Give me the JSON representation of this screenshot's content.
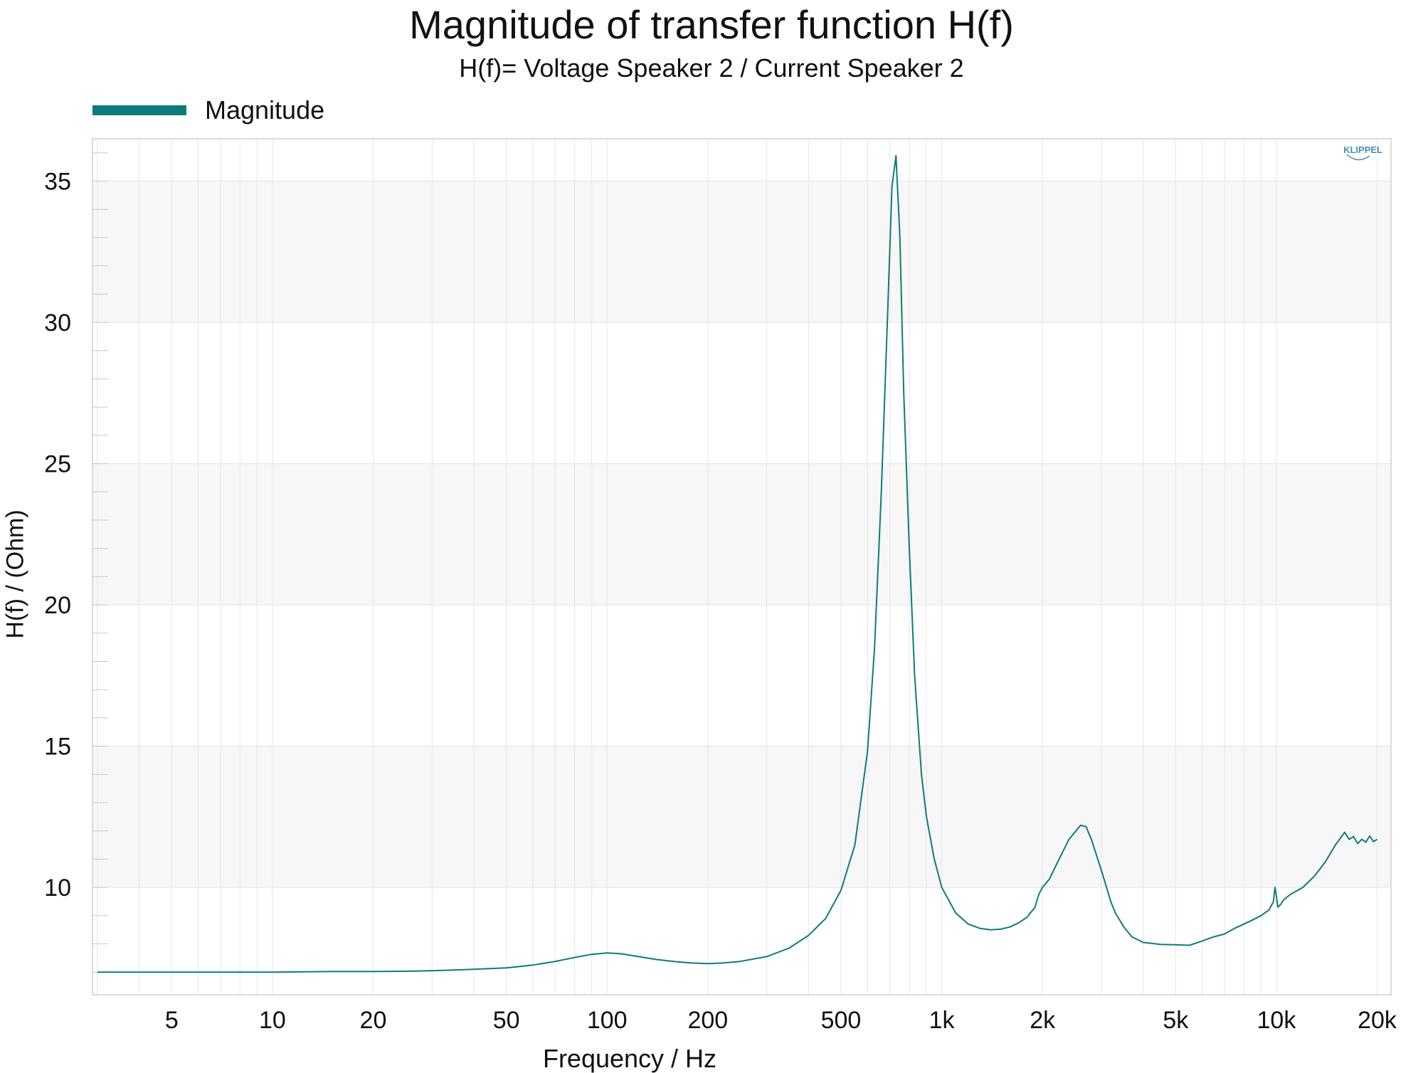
{
  "chart_data": {
    "type": "line",
    "title": "Magnitude of transfer function H(f)",
    "subtitle": "H(f)= Voltage Speaker 2 / Current Speaker 2",
    "xlabel": "Frequency / Hz",
    "ylabel": "H(f) / (Ohm)",
    "x_scale": "log",
    "xlim": [
      2.9,
      22000
    ],
    "ylim": [
      6.2,
      36.5
    ],
    "grid": true,
    "legend_position": "top-left",
    "logo": "KLIPPEL",
    "x_ticks": [
      {
        "value": 5,
        "label": "5"
      },
      {
        "value": 10,
        "label": "10"
      },
      {
        "value": 20,
        "label": "20"
      },
      {
        "value": 50,
        "label": "50"
      },
      {
        "value": 100,
        "label": "100"
      },
      {
        "value": 200,
        "label": "200"
      },
      {
        "value": 500,
        "label": "500"
      },
      {
        "value": 1000,
        "label": "1k"
      },
      {
        "value": 2000,
        "label": "2k"
      },
      {
        "value": 5000,
        "label": "5k"
      },
      {
        "value": 10000,
        "label": "10k"
      },
      {
        "value": 20000,
        "label": "20k"
      }
    ],
    "y_ticks": [
      10,
      15,
      20,
      25,
      30,
      35
    ],
    "series": [
      {
        "name": "Magnitude",
        "color": "#0e7b7b",
        "x": [
          3,
          5,
          10,
          15,
          20,
          25,
          30,
          40,
          50,
          55,
          60,
          70,
          80,
          90,
          100,
          110,
          120,
          140,
          160,
          180,
          200,
          220,
          250,
          300,
          350,
          400,
          450,
          500,
          550,
          600,
          630,
          660,
          690,
          710,
          730,
          750,
          770,
          800,
          830,
          870,
          900,
          950,
          1000,
          1100,
          1200,
          1300,
          1400,
          1500,
          1600,
          1700,
          1800,
          1900,
          1950,
          2000,
          2100,
          2200,
          2400,
          2600,
          2700,
          2800,
          3000,
          3200,
          3300,
          3500,
          3700,
          4000,
          4500,
          5000,
          5500,
          6000,
          6500,
          7000,
          7500,
          8000,
          8500,
          9000,
          9500,
          9800,
          9900,
          10000,
          10100,
          10300,
          10500,
          11000,
          12000,
          13000,
          14000,
          15000,
          16000,
          16500,
          17000,
          17500,
          18000,
          18500,
          19000,
          19500,
          20000
        ],
        "values": [
          7.0,
          7.0,
          7.0,
          7.02,
          7.02,
          7.03,
          7.05,
          7.1,
          7.15,
          7.2,
          7.25,
          7.38,
          7.52,
          7.63,
          7.68,
          7.65,
          7.58,
          7.45,
          7.37,
          7.32,
          7.3,
          7.32,
          7.38,
          7.55,
          7.85,
          8.3,
          8.9,
          9.9,
          11.5,
          14.8,
          18.5,
          24.0,
          30.5,
          34.8,
          35.9,
          33.0,
          27.5,
          22.0,
          17.5,
          14.0,
          12.5,
          11.0,
          10.0,
          9.1,
          8.7,
          8.55,
          8.5,
          8.52,
          8.6,
          8.75,
          8.95,
          9.3,
          9.75,
          10.0,
          10.3,
          10.8,
          11.7,
          12.2,
          12.15,
          11.7,
          10.6,
          9.5,
          9.1,
          8.6,
          8.25,
          8.05,
          7.98,
          7.97,
          7.95,
          8.1,
          8.25,
          8.35,
          8.55,
          8.7,
          8.85,
          9.0,
          9.2,
          9.5,
          10.0,
          9.7,
          9.3,
          9.4,
          9.55,
          9.75,
          10.0,
          10.4,
          10.9,
          11.5,
          11.95,
          11.7,
          11.8,
          11.55,
          11.7,
          11.6,
          11.82,
          11.62,
          11.7
        ]
      }
    ]
  }
}
